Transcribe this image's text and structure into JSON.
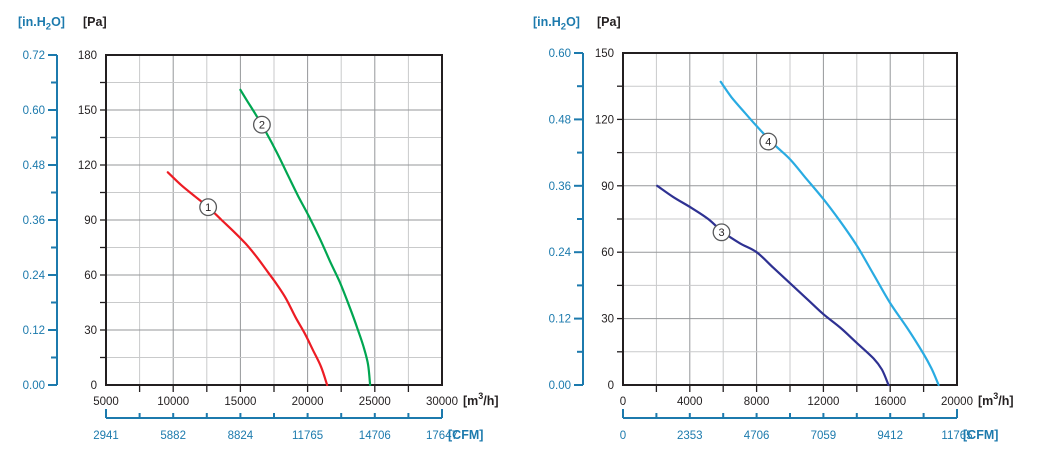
{
  "page": {
    "background": "#ffffff"
  },
  "colors": {
    "axis_blue": "#1c7aad",
    "frame": "#231f20",
    "text": "#231f20",
    "grid_major": "#95979a",
    "grid_minor": "#c9cacb",
    "marker_ring": "#58595b",
    "marker_fill": "#ffffff"
  },
  "chart_data": [
    {
      "type": "line",
      "name": "fan-curve-chart-left",
      "titles": {
        "y2": {
          "pre": "[in.H",
          "sub": "2",
          "post": "O]"
        },
        "y": "[Pa]"
      },
      "x_axis": {
        "unit": {
          "pre": "[m",
          "sup": "3",
          "post": "/h]"
        },
        "min": 5000,
        "max": 30000,
        "minor_step": 2500,
        "major_values": [
          5000,
          10000,
          15000,
          20000,
          25000,
          30000
        ],
        "major_labels": [
          "5000",
          "10000",
          "15000",
          "20000",
          "25000",
          "30000"
        ]
      },
      "y_axis": {
        "unit": "[Pa]",
        "min": 0,
        "max": 180,
        "minor_step": 15,
        "major_step": 30,
        "major_labels": [
          "0",
          "30",
          "60",
          "90",
          "120",
          "150",
          "180"
        ]
      },
      "y2_axis": {
        "unit": "[in.H2O]",
        "labels": [
          "0.00",
          "0.12",
          "0.24",
          "0.36",
          "0.48",
          "0.60",
          "0.72"
        ]
      },
      "cfm_axis": {
        "unit": "[CFM]",
        "labels": [
          "2941",
          "5882",
          "8824",
          "11765",
          "14706",
          "17647"
        ]
      },
      "grid": true,
      "legend_position": "on-curve",
      "series": [
        {
          "marker": "1",
          "color": "#ed1c24",
          "label_at": {
            "x": 12600,
            "y": 97
          },
          "points": [
            [
              9600,
              116
            ],
            [
              10600,
              109
            ],
            [
              11600,
              103
            ],
            [
              12600,
              97
            ],
            [
              13600,
              90
            ],
            [
              14600,
              83
            ],
            [
              15400,
              77
            ],
            [
              16200,
              70
            ],
            [
              17000,
              62
            ],
            [
              17700,
              55
            ],
            [
              18400,
              47
            ],
            [
              19100,
              37
            ],
            [
              19800,
              28
            ],
            [
              20400,
              19
            ],
            [
              21000,
              10
            ],
            [
              21450,
              0
            ]
          ]
        },
        {
          "marker": "2",
          "color": "#00a651",
          "label_at": {
            "x": 16600,
            "y": 142
          },
          "points": [
            [
              15000,
              161
            ],
            [
              15500,
              155
            ],
            [
              16100,
              148
            ],
            [
              16900,
              138
            ],
            [
              17700,
              127
            ],
            [
              18500,
              115
            ],
            [
              19300,
              103
            ],
            [
              20100,
              92
            ],
            [
              20900,
              80
            ],
            [
              21700,
              67
            ],
            [
              22400,
              56
            ],
            [
              23100,
              43
            ],
            [
              23700,
              31
            ],
            [
              24200,
              20
            ],
            [
              24500,
              11
            ],
            [
              24650,
              0
            ]
          ]
        }
      ]
    },
    {
      "type": "line",
      "name": "fan-curve-chart-right",
      "titles": {
        "y2": {
          "pre": "[in.H",
          "sub": "2",
          "post": "O]"
        },
        "y": "[Pa]"
      },
      "x_axis": {
        "unit": {
          "pre": "[m",
          "sup": "3",
          "post": "/h]"
        },
        "min": 0,
        "max": 20000,
        "minor_step": 2000,
        "major_values": [
          0,
          4000,
          8000,
          12000,
          16000,
          20000
        ],
        "major_labels": [
          "0",
          "4000",
          "8000",
          "12000",
          "16000",
          "20000"
        ]
      },
      "y_axis": {
        "unit": "[Pa]",
        "min": 0,
        "max": 150,
        "minor_step": 15,
        "major_step": 30,
        "major_labels": [
          "0",
          "30",
          "60",
          "90",
          "120",
          "150"
        ]
      },
      "y2_axis": {
        "unit": "[in.H2O]",
        "labels": [
          "0.00",
          "0.12",
          "0.24",
          "0.36",
          "0.48",
          "0.60"
        ]
      },
      "cfm_axis": {
        "unit": "[CFM]",
        "labels": [
          "0",
          "2353",
          "4706",
          "7059",
          "9412",
          "11765"
        ]
      },
      "grid": true,
      "legend_position": "on-curve",
      "series": [
        {
          "marker": "3",
          "color": "#2e3192",
          "label_at": {
            "x": 5900,
            "y": 69
          },
          "points": [
            [
              2050,
              90
            ],
            [
              3000,
              85
            ],
            [
              4100,
              80
            ],
            [
              5100,
              75
            ],
            [
              6000,
              69
            ],
            [
              7000,
              64
            ],
            [
              8000,
              60
            ],
            [
              9000,
              53
            ],
            [
              10000,
              46
            ],
            [
              11000,
              39
            ],
            [
              12000,
              32
            ],
            [
              13000,
              26
            ],
            [
              14000,
              19
            ],
            [
              15000,
              12
            ],
            [
              15500,
              7
            ],
            [
              15900,
              0
            ]
          ]
        },
        {
          "marker": "4",
          "color": "#29abe2",
          "label_at": {
            "x": 8700,
            "y": 110
          },
          "points": [
            [
              5850,
              137
            ],
            [
              6500,
              130
            ],
            [
              7300,
              123
            ],
            [
              8000,
              117
            ],
            [
              9000,
              109
            ],
            [
              10000,
              102
            ],
            [
              11000,
              93
            ],
            [
              12000,
              84
            ],
            [
              13000,
              74
            ],
            [
              14000,
              63
            ],
            [
              15000,
              50
            ],
            [
              16000,
              37
            ],
            [
              17000,
              26
            ],
            [
              18000,
              14
            ],
            [
              18500,
              7
            ],
            [
              18900,
              0
            ]
          ]
        }
      ]
    }
  ]
}
